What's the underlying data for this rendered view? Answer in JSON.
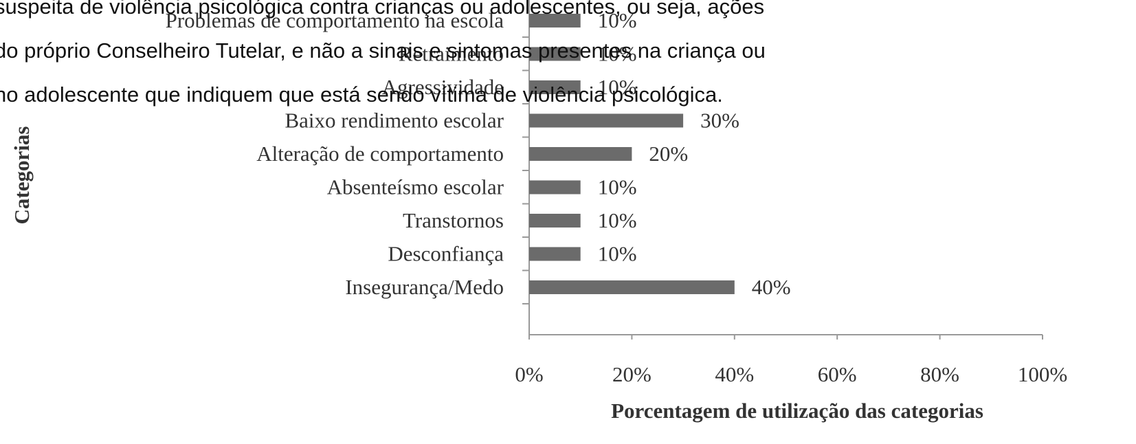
{
  "chart_data": {
    "type": "barh",
    "xlabel": "Porcentagem de utilização das categorias",
    "ylabel": "Categorias",
    "categories": [
      "Problemas de comportamento na escola",
      "Retraimento",
      "Agressividade",
      "Baixo rendimento escolar",
      "Alteração de comportamento",
      "Absenteísmo escolar",
      "Transtornos",
      "Desconfiança",
      "Insegurança/Medo"
    ],
    "values": [
      10,
      10,
      10,
      30,
      20,
      10,
      10,
      10,
      40
    ],
    "value_labels": [
      "10%",
      "10%",
      "10%",
      "30%",
      "20%",
      "10%",
      "10%",
      "10%",
      "40%"
    ],
    "color": "#6b6b6b",
    "xlim": [
      0,
      100
    ],
    "xticks": [
      {
        "value": 0,
        "label": "0%"
      },
      {
        "value": 20,
        "label": "20%"
      },
      {
        "value": 40,
        "label": "40%"
      },
      {
        "value": 60,
        "label": "60%"
      },
      {
        "value": 80,
        "label": "80%"
      },
      {
        "value": 100,
        "label": "100%"
      }
    ]
  },
  "overlay_text": {
    "lines": [
      "suspeita de violência psicológica contra crianças ou adolescentes, ou seja, ações",
      "do próprio Conselheiro Tutelar, e não a sinais e sintomas presentes na criança ou",
      "no adolescente que indiquem que está sendo vítima de violência psicológica."
    ]
  }
}
